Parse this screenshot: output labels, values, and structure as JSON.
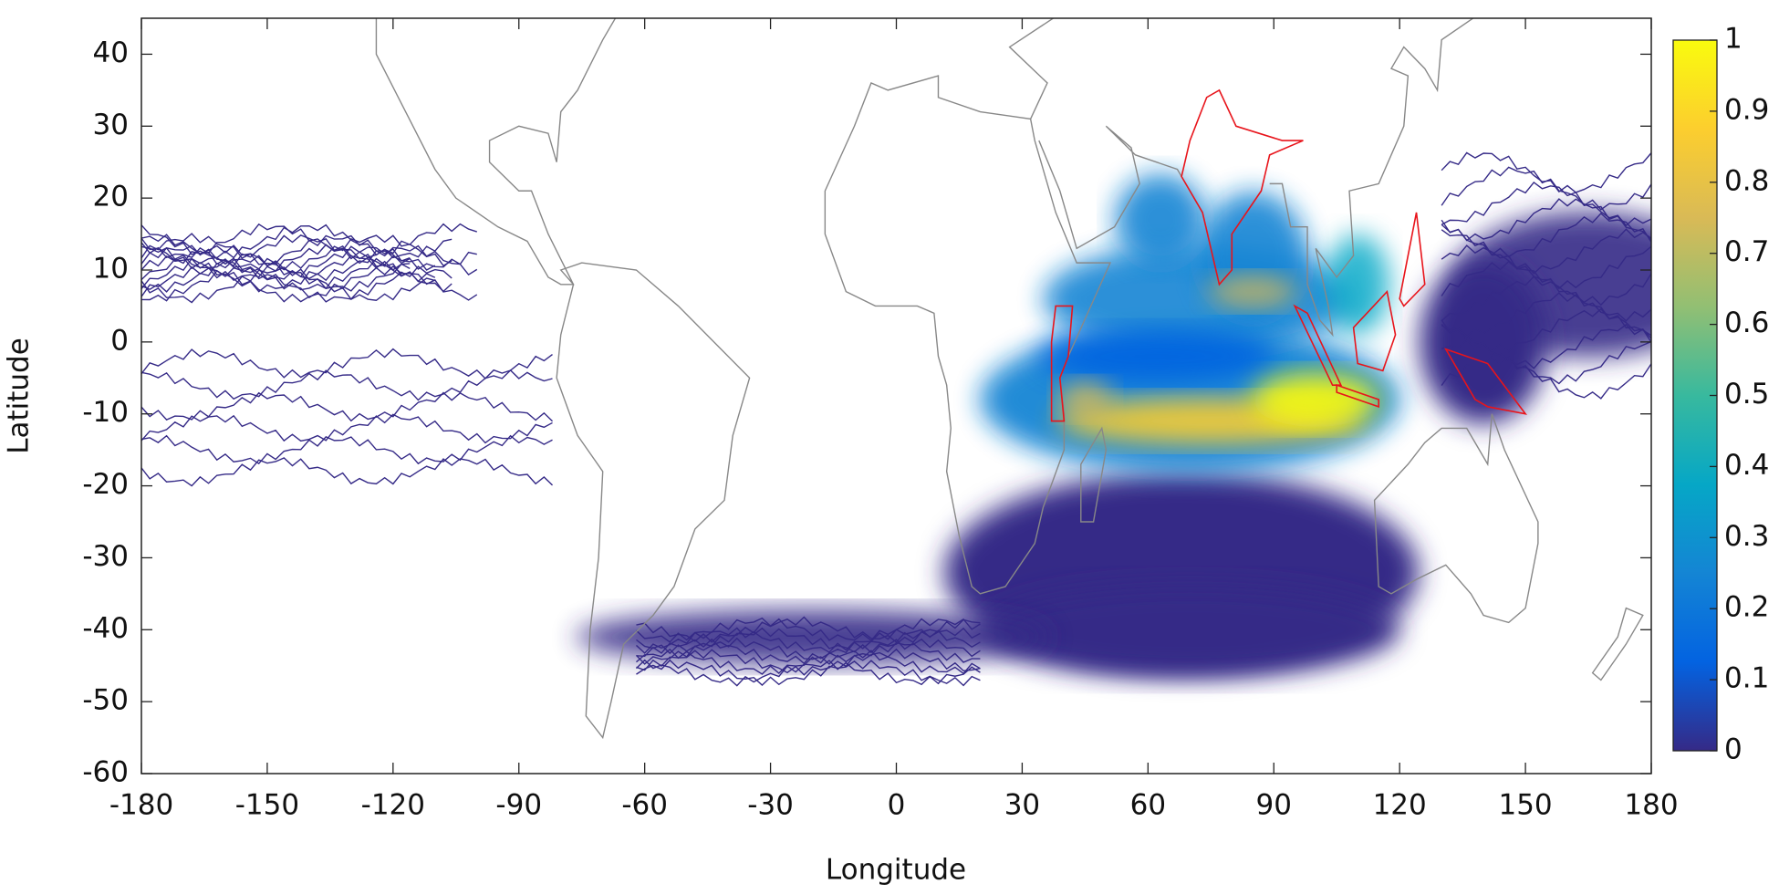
{
  "chart_data": {
    "type": "map",
    "xlabel": "Longitude",
    "ylabel": "Latitude",
    "xlim": [
      -180,
      180
    ],
    "ylim": [
      -60,
      45
    ],
    "xticks": [
      -180,
      -150,
      -120,
      -90,
      -60,
      -30,
      0,
      30,
      60,
      90,
      120,
      150,
      180
    ],
    "yticks": [
      -60,
      -50,
      -40,
      -30,
      -20,
      -10,
      0,
      10,
      20,
      30,
      40
    ],
    "colorbar": {
      "lim": [
        0,
        1
      ],
      "ticks": [
        0,
        0.1,
        0.2,
        0.3,
        0.4,
        0.5,
        0.6,
        0.7,
        0.8,
        0.9,
        1
      ],
      "colormap": [
        "#352a87",
        "#0363e1",
        "#1485d4",
        "#06a7c6",
        "#38b99e",
        "#92bf73",
        "#d9ba56",
        "#fcce2e",
        "#f9fb0e"
      ]
    }
  }
}
